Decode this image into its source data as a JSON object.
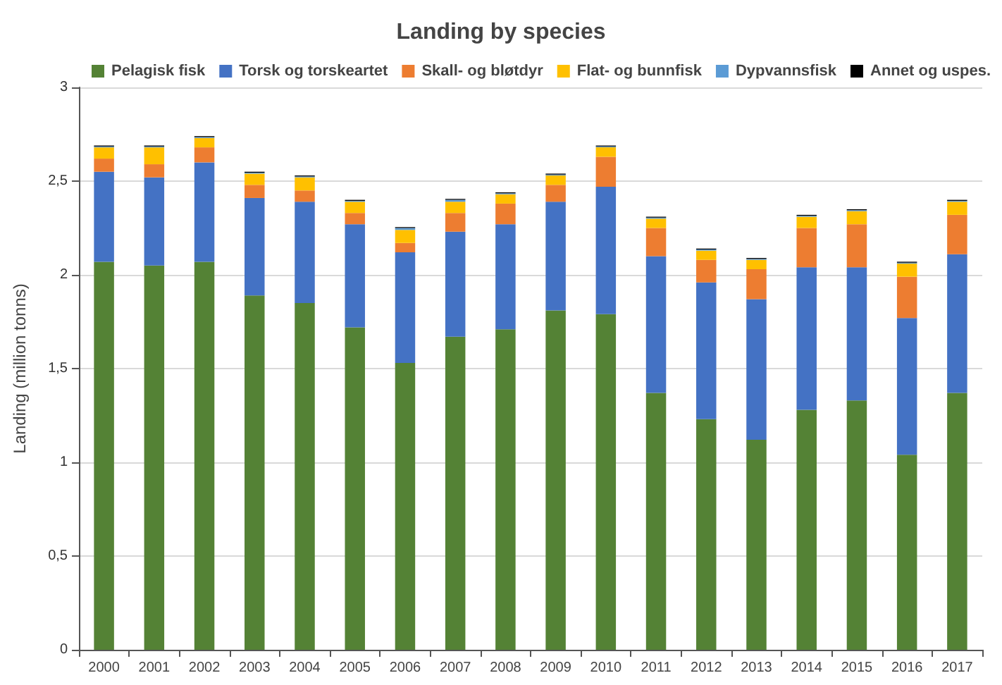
{
  "chart_data": {
    "type": "bar",
    "title": "Landing by species",
    "ylabel": "Landing (million tonns)",
    "categories": [
      "2000",
      "2001",
      "2002",
      "2003",
      "2004",
      "2005",
      "2006",
      "2007",
      "2008",
      "2009",
      "2010",
      "2011",
      "2012",
      "2013",
      "2014",
      "2015",
      "2016",
      "2017"
    ],
    "stacked": true,
    "grid": "y",
    "legend": "top",
    "ylim": [
      0,
      3
    ],
    "yticks": [
      0,
      {
        "value": 0.5,
        "label": "0,5"
      },
      1,
      {
        "value": 1.5,
        "label": "1,5"
      },
      2,
      {
        "value": 2.5,
        "label": "2,5"
      },
      3
    ],
    "series": [
      {
        "name": "Pelagisk fisk",
        "color": "#548235",
        "values": [
          2.07,
          2.05,
          2.07,
          1.89,
          1.85,
          1.72,
          1.53,
          1.67,
          1.71,
          1.81,
          1.79,
          1.37,
          1.23,
          1.12,
          1.28,
          1.33,
          1.04,
          1.37
        ]
      },
      {
        "name": "Torsk og torskeartet",
        "color": "#4472c4",
        "values": [
          0.48,
          0.47,
          0.53,
          0.52,
          0.54,
          0.55,
          0.59,
          0.56,
          0.56,
          0.58,
          0.68,
          0.73,
          0.73,
          0.75,
          0.76,
          0.71,
          0.73,
          0.74
        ]
      },
      {
        "name": "Skall- og bløtdyr",
        "color": "#ed7d31",
        "values": [
          0.07,
          0.07,
          0.08,
          0.07,
          0.06,
          0.06,
          0.05,
          0.1,
          0.11,
          0.09,
          0.16,
          0.15,
          0.12,
          0.16,
          0.21,
          0.23,
          0.22,
          0.21
        ]
      },
      {
        "name": "Flat- og bunnfisk",
        "color": "#ffc000",
        "values": [
          0.06,
          0.09,
          0.05,
          0.06,
          0.07,
          0.06,
          0.07,
          0.06,
          0.05,
          0.05,
          0.05,
          0.05,
          0.05,
          0.05,
          0.06,
          0.07,
          0.07,
          0.07
        ]
      },
      {
        "name": "Dypvannsfisk",
        "color": "#5b9bd5",
        "values": [
          0.005,
          0.005,
          0.005,
          0.005,
          0.005,
          0.005,
          0.01,
          0.01,
          0.005,
          0.005,
          0.005,
          0.005,
          0.005,
          0.005,
          0.005,
          0.005,
          0.005,
          0.005
        ]
      },
      {
        "name": "Annet og uspes.",
        "color": "#000000",
        "values": [
          0.005,
          0.005,
          0.005,
          0.005,
          0.005,
          0.005,
          0.005,
          0.005,
          0.005,
          0.005,
          0.005,
          0.005,
          0.005,
          0.005,
          0.005,
          0.005,
          0.005,
          0.005
        ]
      }
    ]
  }
}
